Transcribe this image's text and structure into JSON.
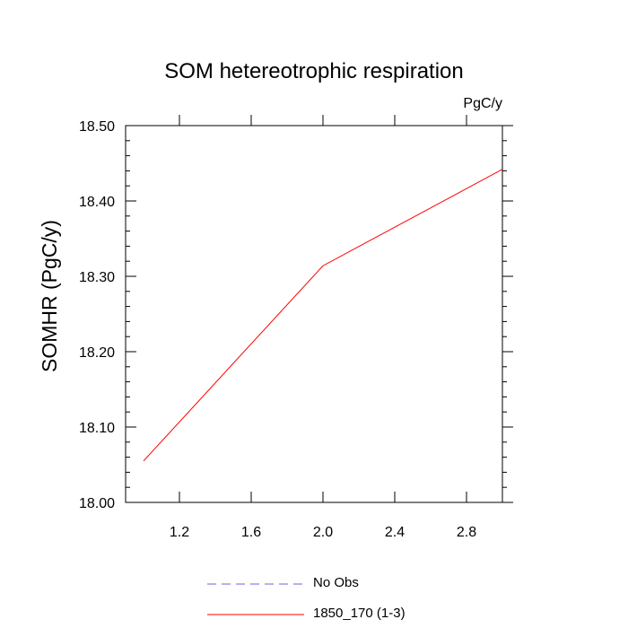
{
  "chart_data": {
    "type": "line",
    "title": "SOM hetereotrophic respiration",
    "units_label": "PgC/y",
    "xlabel": "",
    "ylabel": "SOMHR  (PgC/y)",
    "xlim": [
      0.9,
      3.0
    ],
    "ylim": [
      18.0,
      18.5
    ],
    "x_ticks": [
      1.2,
      1.6,
      2.0,
      2.4,
      2.8
    ],
    "x_tick_labels": [
      "1.2",
      "1.6",
      "2.0",
      "2.4",
      "2.8"
    ],
    "y_ticks": [
      18.0,
      18.1,
      18.2,
      18.3,
      18.4,
      18.5
    ],
    "y_tick_labels": [
      "18.00",
      "18.10",
      "18.20",
      "18.30",
      "18.40",
      "18.50"
    ],
    "grid": false,
    "legend_position": "bottom-center",
    "series": [
      {
        "name": "No Obs",
        "x": [],
        "y": [],
        "color": "#6666dd",
        "dash": true
      },
      {
        "name": "1850_170 (1-3)",
        "x": [
          1.0,
          2.0,
          3.0
        ],
        "y": [
          18.055,
          18.314,
          18.442
        ],
        "color": "#ff0000",
        "dash": false
      }
    ]
  }
}
